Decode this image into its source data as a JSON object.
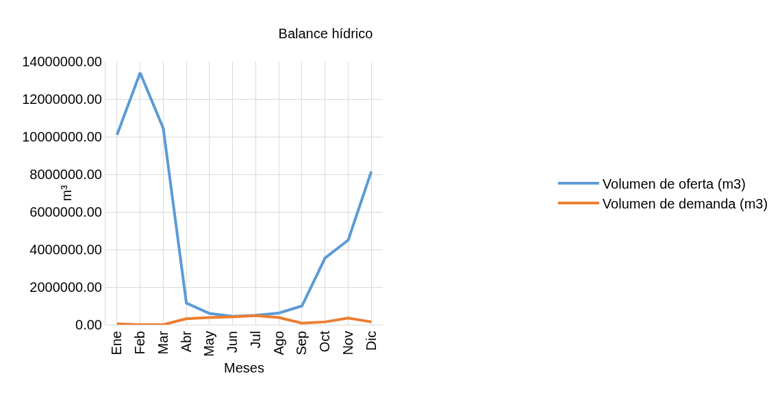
{
  "chart_data": {
    "type": "line",
    "title": "Balance hídrico",
    "xlabel": "Meses",
    "ylabel": "m³",
    "categories": [
      "Ene",
      "Feb",
      "Mar",
      "Abr",
      "May",
      "Jun",
      "Jul",
      "Ago",
      "Sep",
      "Oct",
      "Nov",
      "Dic"
    ],
    "series": [
      {
        "name": "Volumen de oferta (m3)",
        "color": "#5b9bd5",
        "values": [
          10100000,
          13400000,
          10450000,
          1150000,
          600000,
          450000,
          500000,
          620000,
          1000000,
          3550000,
          4500000,
          8150000
        ]
      },
      {
        "name": "Volumen de demanda (m3)",
        "color": "#ed7d31",
        "values": [
          50000,
          0,
          0,
          320000,
          380000,
          420000,
          480000,
          380000,
          80000,
          150000,
          350000,
          150000
        ]
      }
    ],
    "ylim": [
      0,
      14000000
    ],
    "yticks": [
      {
        "value": 0,
        "label": "0.00"
      },
      {
        "value": 2000000,
        "label": "2000000.00"
      },
      {
        "value": 4000000,
        "label": "4000000.00"
      },
      {
        "value": 6000000,
        "label": "6000000.00"
      },
      {
        "value": 8000000,
        "label": "8000000.00"
      },
      {
        "value": 10000000,
        "label": "10000000.00"
      },
      {
        "value": 12000000,
        "label": "12000000.00"
      },
      {
        "value": 14000000,
        "label": "14000000.00"
      }
    ],
    "grid": true,
    "legend": "right",
    "marker": "none",
    "line_style": "solid"
  }
}
